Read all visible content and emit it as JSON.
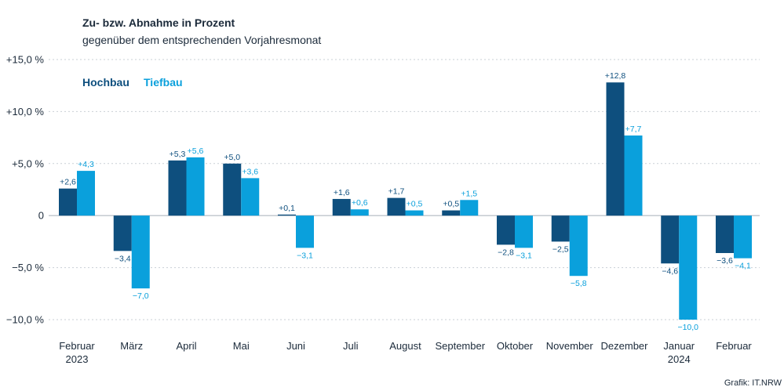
{
  "header": {
    "title": "Zu- bzw. Abnahme in Prozent",
    "subtitle": "gegenüber dem entsprechenden Vorjahresmonat"
  },
  "source": "Grafik: IT.NRW",
  "colors": {
    "hochbau": "#0e4f7e",
    "tiefbau": "#0aa0dc",
    "text": "#1b2a3a",
    "grid": "#c9cfd6"
  },
  "chart_data": {
    "type": "bar",
    "categories": [
      [
        "Februar",
        "2023"
      ],
      [
        "März"
      ],
      [
        "April"
      ],
      [
        "Mai"
      ],
      [
        "Juni"
      ],
      [
        "Juli"
      ],
      [
        "August"
      ],
      [
        "September"
      ],
      [
        "Oktober"
      ],
      [
        "November"
      ],
      [
        "Dezember"
      ],
      [
        "Januar",
        "2024"
      ],
      [
        "Februar"
      ]
    ],
    "series": [
      {
        "name": "Hochbau",
        "values": [
          2.6,
          -3.4,
          5.3,
          5.0,
          0.1,
          1.6,
          1.7,
          0.5,
          -2.8,
          -2.5,
          12.8,
          -4.6,
          -3.6
        ],
        "labels": [
          "+2,6",
          "−3,4",
          "+5,3",
          "+5,0",
          "+0,1",
          "+1,6",
          "+1,7",
          "+0,5",
          "−2,8",
          "−2,5",
          "+12,8",
          "−4,6",
          "−3,6"
        ]
      },
      {
        "name": "Tiefbau",
        "values": [
          4.3,
          -7.0,
          5.6,
          3.6,
          -3.1,
          0.6,
          0.5,
          1.5,
          -3.1,
          -5.8,
          7.7,
          -10.0,
          -4.1
        ],
        "labels": [
          "+4,3",
          "−7,0",
          "+5,6",
          "+3,6",
          "−3,1",
          "+0,6",
          "+0,5",
          "+1,5",
          "−3,1",
          "−5,8",
          "+7,7",
          "−10,0",
          "−4,1"
        ]
      }
    ],
    "yticks": [
      {
        "value": 15,
        "label": "+15,0 %"
      },
      {
        "value": 10,
        "label": "+10,0 %"
      },
      {
        "value": 5,
        "label": "+5,0 %"
      },
      {
        "value": 0,
        "label": "0"
      },
      {
        "value": -5,
        "label": "−5,0 %"
      },
      {
        "value": -10,
        "label": "−10,0 %"
      }
    ],
    "ylim": [
      -10,
      15
    ],
    "grid": true,
    "legend_position": "top-left"
  }
}
